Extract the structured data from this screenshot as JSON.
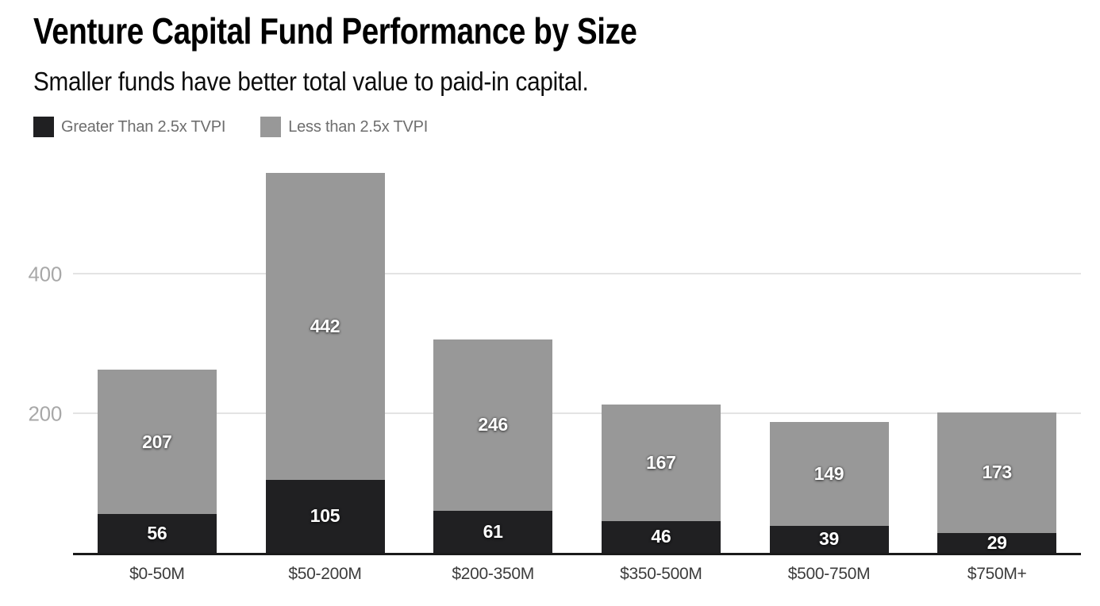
{
  "header": {
    "title": "Venture Capital Fund Performance by Size",
    "subtitle": "Smaller funds have better total value to paid-in capital."
  },
  "legend": {
    "items": [
      {
        "label": "Greater Than 2.5x TVPI",
        "color": "#202022"
      },
      {
        "label": "Less than 2.5x TVPI",
        "color": "#989898"
      }
    ]
  },
  "colors": {
    "greater_segment": "#202022",
    "less_segment": "#989898",
    "gridline": "#e3e3e3",
    "axis_line": "#1a1a1a",
    "y_tick_text": "#a8a8a8",
    "x_tick_text": "#3c3c3c",
    "legend_text": "#6e6e6e",
    "value_label_text": "#ffffff"
  },
  "chart_data": {
    "type": "bar",
    "stacked": true,
    "title": "Venture Capital Fund Performance by Size",
    "subtitle": "Smaller funds have better total value to paid-in capital.",
    "xlabel": "",
    "ylabel": "",
    "categories": [
      "$0-50M",
      "$50-200M",
      "$200-350M",
      "$350-500M",
      "$500-750M",
      "$750M+"
    ],
    "series": [
      {
        "name": "Greater Than 2.5x TVPI",
        "color": "#202022",
        "values": [
          56,
          105,
          61,
          46,
          39,
          29
        ]
      },
      {
        "name": "Less than 2.5x TVPI",
        "color": "#989898",
        "values": [
          207,
          442,
          246,
          167,
          149,
          173
        ]
      }
    ],
    "totals": [
      263,
      547,
      307,
      213,
      188,
      202
    ],
    "yticks": [
      200,
      400
    ],
    "ylim": [
      0,
      575
    ],
    "grid": true,
    "legend_position": "top-left",
    "value_labels": "inside-center"
  }
}
